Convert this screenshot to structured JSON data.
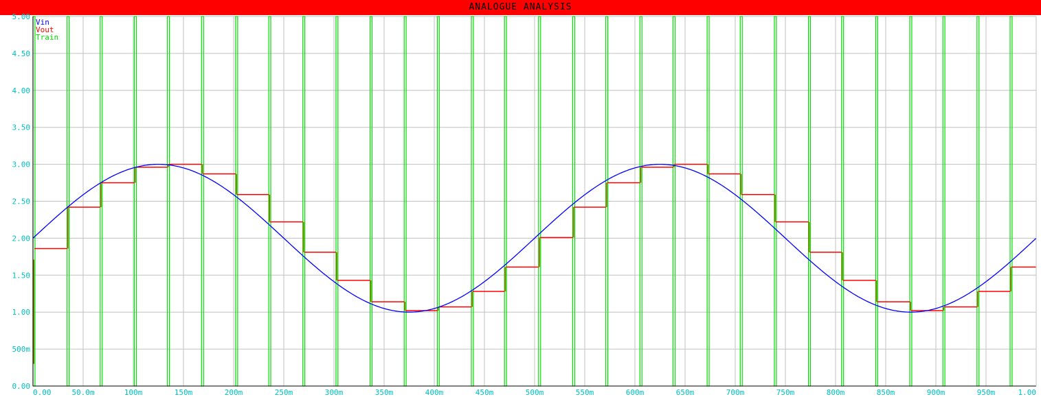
{
  "window": {
    "title": "ANALOGUE ANALYSIS"
  },
  "colors": {
    "background": "#ffffff",
    "title_bar": "#ff0000",
    "grid": "#c0c0c0",
    "axis": "#000000",
    "tick_label": "#00c0c0",
    "vin": "#0000ff",
    "vout": "#ff0000",
    "train": "#00e000",
    "pulse_edge": "#808000"
  },
  "chart_data": {
    "type": "line",
    "title": "ANALOGUE ANALYSIS",
    "xlabel": "",
    "ylabel": "",
    "xlim": [
      0,
      1.0
    ],
    "ylim": [
      0,
      5.0
    ],
    "grid": true,
    "legend_placement": "top-left",
    "x_ticks": [
      0,
      0.05,
      0.1,
      0.15,
      0.2,
      0.25,
      0.3,
      0.35,
      0.4,
      0.45,
      0.5,
      0.55,
      0.6,
      0.65,
      0.7,
      0.75,
      0.8,
      0.85,
      0.9,
      0.95,
      1.0
    ],
    "x_tick_labels": [
      "0.00",
      "50.0m",
      "100m",
      "150m",
      "200m",
      "250m",
      "300m",
      "350m",
      "400m",
      "450m",
      "500m",
      "550m",
      "600m",
      "650m",
      "700m",
      "750m",
      "800m",
      "850m",
      "900m",
      "950m",
      "1.00"
    ],
    "y_ticks": [
      0,
      0.5,
      1.0,
      1.5,
      2.0,
      2.5,
      3.0,
      3.5,
      4.0,
      4.5,
      5.0
    ],
    "y_tick_labels": [
      "0.00",
      "500m",
      "1.00",
      "1.50",
      "2.00",
      "2.50",
      "3.00",
      "3.50",
      "4.00",
      "4.50",
      "5.00"
    ],
    "series": [
      {
        "name": "Vin",
        "kind": "sine",
        "offset": 2.0,
        "amplitude": 1.0,
        "frequency_hz": 2.0,
        "color": "#0000ff"
      },
      {
        "name": "Vout",
        "kind": "step",
        "color": "#ff0000",
        "steps": [
          [
            0.0,
            1.86
          ],
          [
            0.034,
            2.42
          ],
          [
            0.067,
            2.75
          ],
          [
            0.101,
            2.96
          ],
          [
            0.134,
            3.0
          ],
          [
            0.168,
            2.87
          ],
          [
            0.202,
            2.59
          ],
          [
            0.235,
            2.22
          ],
          [
            0.269,
            1.81
          ],
          [
            0.302,
            1.43
          ],
          [
            0.336,
            1.14
          ],
          [
            0.37,
            1.02
          ],
          [
            0.403,
            1.07
          ],
          [
            0.437,
            1.28
          ],
          [
            0.47,
            1.61
          ],
          [
            0.504,
            2.01
          ],
          [
            0.538,
            2.42
          ],
          [
            0.571,
            2.75
          ],
          [
            0.605,
            2.96
          ],
          [
            0.638,
            3.0
          ],
          [
            0.672,
            2.87
          ],
          [
            0.705,
            2.59
          ],
          [
            0.739,
            2.22
          ],
          [
            0.773,
            1.81
          ],
          [
            0.806,
            1.43
          ],
          [
            0.84,
            1.14
          ],
          [
            0.874,
            1.02
          ],
          [
            0.907,
            1.07
          ],
          [
            0.941,
            1.28
          ],
          [
            0.974,
            1.61
          ]
        ]
      },
      {
        "name": "Train",
        "kind": "pulse-train",
        "color": "#00e000",
        "pulse_times": [
          0.0,
          0.034,
          0.067,
          0.101,
          0.134,
          0.168,
          0.202,
          0.235,
          0.269,
          0.302,
          0.336,
          0.37,
          0.403,
          0.437,
          0.47,
          0.504,
          0.538,
          0.571,
          0.605,
          0.638,
          0.672,
          0.705,
          0.739,
          0.773,
          0.806,
          0.84,
          0.874,
          0.907,
          0.941,
          0.974
        ],
        "pulse_width": 0.002,
        "low": 0.0,
        "high": 5.0
      }
    ]
  }
}
